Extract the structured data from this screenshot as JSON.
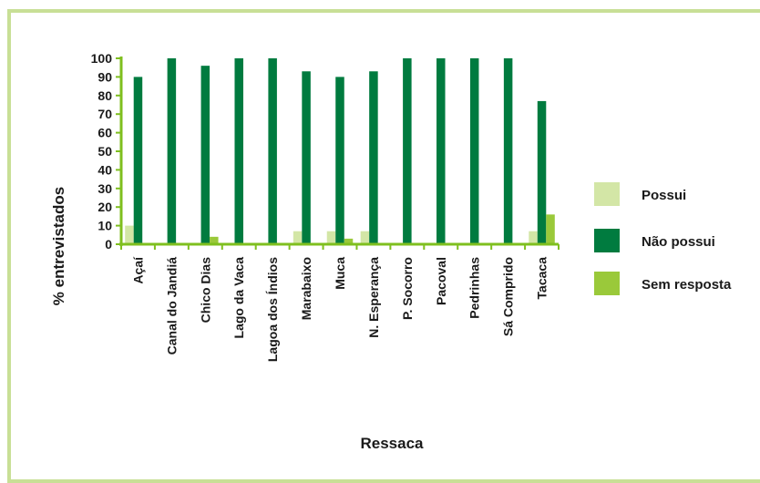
{
  "chart_data": {
    "type": "bar",
    "xlabel": "Ressaca",
    "ylabel": "% entrevistados",
    "ylim": [
      0,
      100
    ],
    "yticks": [
      0,
      10,
      20,
      30,
      40,
      50,
      60,
      70,
      80,
      90,
      100
    ],
    "grid": false,
    "legend_position": "right",
    "categories": [
      "Açaí",
      "Canal do Jandiá",
      "Chico Dias",
      "Lago da Vaca",
      "Lagoa dos Índios",
      "Marabaixo",
      "Muca",
      "N. Esperança",
      "P. Socorro",
      "Pacoval",
      "Pedrinhas",
      "Sá Comprido",
      "Tacaca"
    ],
    "series": [
      {
        "name": "Possui",
        "color": "#d3e6a6",
        "values": [
          10,
          0,
          0,
          0,
          0,
          7,
          7,
          7,
          0,
          0,
          0,
          0,
          7
        ]
      },
      {
        "name": "Não possui",
        "color": "#007b3f",
        "values": [
          90,
          100,
          96,
          100,
          100,
          93,
          90,
          93,
          100,
          100,
          100,
          100,
          77
        ]
      },
      {
        "name": "Sem resposta",
        "color": "#9ac93a",
        "values": [
          0,
          0,
          4,
          0,
          0,
          0,
          3,
          0,
          0,
          0,
          0,
          0,
          16
        ]
      }
    ],
    "axis_color": "#7fbf1f"
  }
}
